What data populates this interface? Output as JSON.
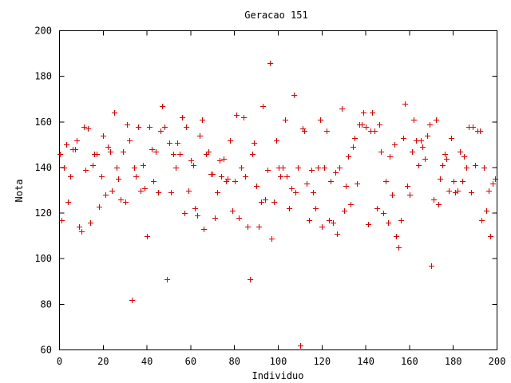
{
  "chart_data": {
    "type": "scatter",
    "title": "Geracao 151",
    "xlabel": "Individuo",
    "ylabel": "Nota",
    "xlim": [
      0,
      200
    ],
    "ylim": [
      60,
      200
    ],
    "x_ticks": [
      "0",
      "20",
      "40",
      "60",
      "80",
      "100",
      "120",
      "140",
      "160",
      "180",
      "200"
    ],
    "y_ticks": [
      "60",
      "80",
      "100",
      "120",
      "140",
      "160",
      "180",
      "200"
    ],
    "marker": "plus",
    "color": "#dd0000",
    "grid": false,
    "legend": "none",
    "points": [
      [
        0,
        146
      ],
      [
        1,
        117
      ],
      [
        2,
        140
      ],
      [
        3,
        150
      ],
      [
        4,
        125
      ],
      [
        5,
        136
      ],
      [
        6,
        148
      ],
      [
        7,
        148
      ],
      [
        8,
        152
      ],
      [
        9,
        114
      ],
      [
        10,
        112
      ],
      [
        11,
        158
      ],
      [
        12,
        139
      ],
      [
        13,
        157
      ],
      [
        14,
        116
      ],
      [
        15,
        141
      ],
      [
        16,
        146
      ],
      [
        17,
        146
      ],
      [
        18,
        123
      ],
      [
        19,
        136
      ],
      [
        20,
        154
      ],
      [
        21,
        128
      ],
      [
        22,
        149
      ],
      [
        23,
        147
      ],
      [
        24,
        130
      ],
      [
        25,
        164
      ],
      [
        26,
        140
      ],
      [
        27,
        135
      ],
      [
        28,
        126
      ],
      [
        29,
        147
      ],
      [
        30,
        125
      ],
      [
        31,
        159
      ],
      [
        32,
        152
      ],
      [
        33,
        82
      ],
      [
        34,
        140
      ],
      [
        35,
        136
      ],
      [
        36,
        158
      ],
      [
        37,
        130
      ],
      [
        38,
        141
      ],
      [
        39,
        131
      ],
      [
        40,
        110
      ],
      [
        41,
        158
      ],
      [
        42,
        148
      ],
      [
        43,
        134
      ],
      [
        44,
        147
      ],
      [
        45,
        129
      ],
      [
        46,
        156
      ],
      [
        47,
        167
      ],
      [
        48,
        158
      ],
      [
        49,
        91
      ],
      [
        50,
        151
      ],
      [
        51,
        129
      ],
      [
        52,
        146
      ],
      [
        53,
        140
      ],
      [
        54,
        151
      ],
      [
        55,
        146
      ],
      [
        56,
        162
      ],
      [
        57,
        120
      ],
      [
        58,
        158
      ],
      [
        59,
        130
      ],
      [
        60,
        143
      ],
      [
        61,
        141
      ],
      [
        62,
        122
      ],
      [
        63,
        119
      ],
      [
        64,
        154
      ],
      [
        65,
        161
      ],
      [
        66,
        113
      ],
      [
        67,
        146
      ],
      [
        68,
        147
      ],
      [
        69,
        137
      ],
      [
        70,
        137
      ],
      [
        71,
        118
      ],
      [
        72,
        129
      ],
      [
        73,
        143
      ],
      [
        74,
        136
      ],
      [
        75,
        144
      ],
      [
        76,
        134
      ],
      [
        77,
        135
      ],
      [
        78,
        152
      ],
      [
        79,
        121
      ],
      [
        80,
        134
      ],
      [
        81,
        163
      ],
      [
        82,
        118
      ],
      [
        83,
        140
      ],
      [
        84,
        162
      ],
      [
        85,
        136
      ],
      [
        86,
        114
      ],
      [
        87,
        91
      ],
      [
        88,
        146
      ],
      [
        89,
        151
      ],
      [
        90,
        132
      ],
      [
        91,
        114
      ],
      [
        92,
        125
      ],
      [
        93,
        167
      ],
      [
        94,
        126
      ],
      [
        95,
        139
      ],
      [
        96,
        186
      ],
      [
        97,
        109
      ],
      [
        98,
        125
      ],
      [
        99,
        152
      ],
      [
        100,
        140
      ],
      [
        101,
        136
      ],
      [
        102,
        140
      ],
      [
        103,
        161
      ],
      [
        104,
        136
      ],
      [
        105,
        122
      ],
      [
        106,
        131
      ],
      [
        107,
        172
      ],
      [
        108,
        129
      ],
      [
        109,
        140
      ],
      [
        110,
        62
      ],
      [
        111,
        157
      ],
      [
        112,
        156
      ],
      [
        113,
        133
      ],
      [
        114,
        117
      ],
      [
        115,
        139
      ],
      [
        116,
        129
      ],
      [
        117,
        122
      ],
      [
        118,
        140
      ],
      [
        119,
        161
      ],
      [
        120,
        114
      ],
      [
        121,
        140
      ],
      [
        122,
        156
      ],
      [
        123,
        117
      ],
      [
        124,
        134
      ],
      [
        125,
        116
      ],
      [
        126,
        138
      ],
      [
        127,
        111
      ],
      [
        128,
        140
      ],
      [
        129,
        166
      ],
      [
        130,
        121
      ],
      [
        131,
        132
      ],
      [
        132,
        145
      ],
      [
        133,
        124
      ],
      [
        134,
        149
      ],
      [
        135,
        153
      ],
      [
        136,
        133
      ],
      [
        137,
        159
      ],
      [
        138,
        159
      ],
      [
        139,
        164
      ],
      [
        140,
        158
      ],
      [
        141,
        115
      ],
      [
        142,
        156
      ],
      [
        143,
        164
      ],
      [
        144,
        156
      ],
      [
        145,
        122
      ],
      [
        146,
        159
      ],
      [
        147,
        147
      ],
      [
        148,
        120
      ],
      [
        149,
        134
      ],
      [
        150,
        116
      ],
      [
        151,
        145
      ],
      [
        152,
        128
      ],
      [
        153,
        150
      ],
      [
        154,
        110
      ],
      [
        155,
        105
      ],
      [
        156,
        117
      ],
      [
        157,
        153
      ],
      [
        158,
        168
      ],
      [
        159,
        132
      ],
      [
        160,
        128
      ],
      [
        161,
        147
      ],
      [
        162,
        161
      ],
      [
        163,
        152
      ],
      [
        164,
        141
      ],
      [
        165,
        152
      ],
      [
        166,
        149
      ],
      [
        167,
        144
      ],
      [
        168,
        154
      ],
      [
        169,
        159
      ],
      [
        170,
        97
      ],
      [
        171,
        126
      ],
      [
        172,
        161
      ],
      [
        173,
        124
      ],
      [
        174,
        135
      ],
      [
        175,
        141
      ],
      [
        176,
        146
      ],
      [
        177,
        144
      ],
      [
        178,
        130
      ],
      [
        179,
        153
      ],
      [
        180,
        134
      ],
      [
        181,
        129
      ],
      [
        182,
        130
      ],
      [
        183,
        147
      ],
      [
        184,
        134
      ],
      [
        185,
        145
      ],
      [
        186,
        140
      ],
      [
        187,
        158
      ],
      [
        188,
        129
      ],
      [
        189,
        158
      ],
      [
        190,
        141
      ],
      [
        191,
        156
      ],
      [
        192,
        156
      ],
      [
        193,
        117
      ],
      [
        194,
        140
      ],
      [
        195,
        121
      ],
      [
        196,
        130
      ],
      [
        197,
        110
      ],
      [
        198,
        133
      ],
      [
        199,
        135
      ]
    ]
  }
}
